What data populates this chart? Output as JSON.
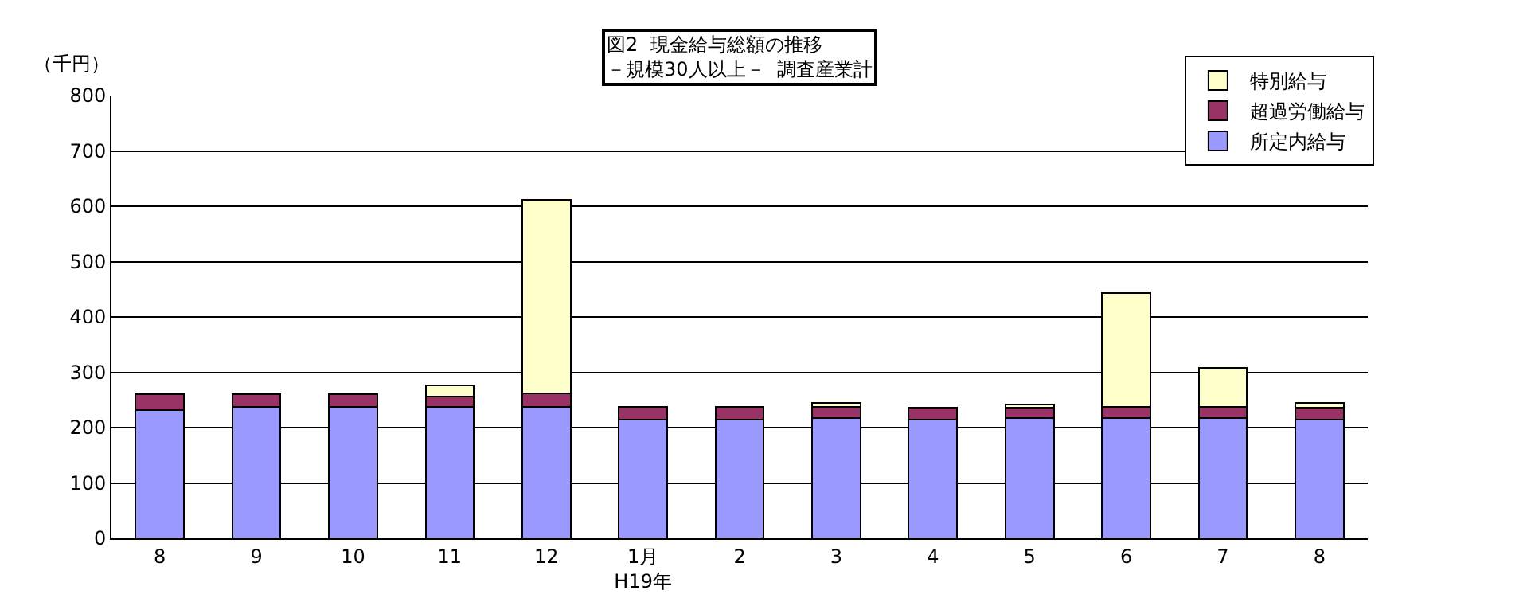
{
  "chart_data": {
    "type": "bar",
    "stacked": true,
    "title": "図2  現金給与総額の推移",
    "subtitle": "－規模30人以上－  調査産業計",
    "ylabel": "（千円）",
    "categories": [
      "8",
      "9",
      "10",
      "11",
      "12",
      "1月\nH19年",
      "2",
      "3",
      "4",
      "5",
      "6",
      "7",
      "8"
    ],
    "series": [
      {
        "name": "所定内給与",
        "color": "#9999ff",
        "values": [
          232,
          237,
          237,
          237,
          237,
          215,
          214,
          217,
          214,
          217,
          217,
          217,
          214
        ]
      },
      {
        "name": "超過労働給与",
        "color": "#993366",
        "values": [
          29,
          24,
          24,
          19,
          25,
          22,
          23,
          20,
          22,
          19,
          20,
          20,
          22
        ]
      },
      {
        "name": "特別給与",
        "color": "#ffffcc",
        "values": [
          null,
          null,
          null,
          20,
          350,
          null,
          null,
          8,
          null,
          6,
          206,
          71,
          9
        ]
      }
    ],
    "ylim": [
      0,
      800
    ],
    "yticks": [
      0,
      100,
      200,
      300,
      400,
      500,
      600,
      700,
      800
    ],
    "grid": "y",
    "legend": "top right"
  }
}
